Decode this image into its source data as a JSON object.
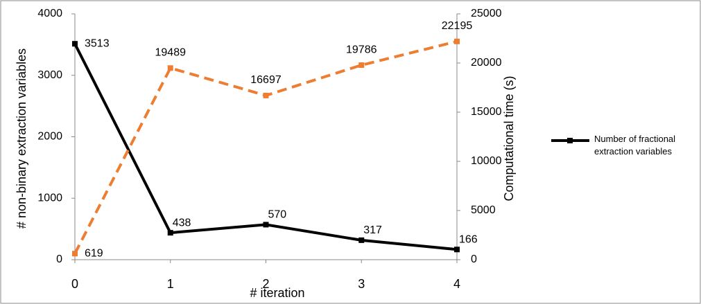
{
  "chart_data": {
    "type": "line",
    "x": [
      0,
      1,
      2,
      3,
      4
    ],
    "xlim": [
      0,
      4
    ],
    "xticks": [
      0,
      1,
      2,
      3,
      4
    ],
    "xlabel": "# iteration",
    "ylabel": "# non-binary extraction variables",
    "y2label": "Computational time (s)",
    "ylim": [
      0,
      4000
    ],
    "yticks": [
      0,
      1000,
      2000,
      3000,
      4000
    ],
    "y2lim": [
      0,
      25000
    ],
    "y2ticks": [
      0,
      5000,
      10000,
      15000,
      20000,
      25000
    ],
    "series": [
      {
        "name": "Number of fractional extraction variables",
        "color": "#000000",
        "values": [
          3513,
          438,
          570,
          317,
          166
        ]
      },
      {
        "color": "#ED7D31",
        "axis": "y2",
        "dashed": true,
        "values": [
          619,
          19489,
          16697,
          19786,
          22195
        ]
      }
    ]
  }
}
